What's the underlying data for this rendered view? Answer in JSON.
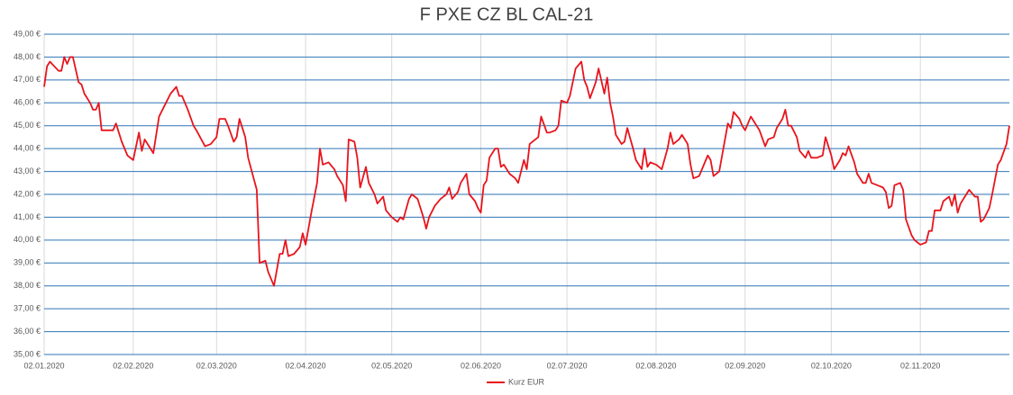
{
  "chart_data": {
    "type": "line",
    "title": "F PXE CZ BL CAL-21",
    "x": [
      "2020-01-02",
      "2020-01-03",
      "2020-01-04",
      "2020-01-07",
      "2020-01-08",
      "2020-01-09",
      "2020-01-10",
      "2020-01-11",
      "2020-01-12",
      "2020-01-14",
      "2020-01-15",
      "2020-01-16",
      "2020-01-18",
      "2020-01-19",
      "2020-01-20",
      "2020-01-21",
      "2020-01-22",
      "2020-01-26",
      "2020-01-27",
      "2020-01-29",
      "2020-01-31",
      "2020-02-02",
      "2020-02-04",
      "2020-02-05",
      "2020-02-06",
      "2020-02-08",
      "2020-02-09",
      "2020-02-11",
      "2020-02-13",
      "2020-02-15",
      "2020-02-17",
      "2020-02-18",
      "2020-02-19",
      "2020-02-21",
      "2020-02-23",
      "2020-02-24",
      "2020-02-27",
      "2020-02-29",
      "2020-03-02",
      "2020-03-03",
      "2020-03-05",
      "2020-03-06",
      "2020-03-08",
      "2020-03-09",
      "2020-03-10",
      "2020-03-12",
      "2020-03-13",
      "2020-03-16",
      "2020-03-17",
      "2020-03-19",
      "2020-03-20",
      "2020-03-22",
      "2020-03-24",
      "2020-03-25",
      "2020-03-26",
      "2020-03-27",
      "2020-03-29",
      "2020-03-31",
      "2020-04-01",
      "2020-04-02",
      "2020-04-04",
      "2020-04-06",
      "2020-04-07",
      "2020-04-08",
      "2020-04-10",
      "2020-04-12",
      "2020-04-13",
      "2020-04-15",
      "2020-04-16",
      "2020-04-17",
      "2020-04-19",
      "2020-04-20",
      "2020-04-21",
      "2020-04-23",
      "2020-04-24",
      "2020-04-26",
      "2020-04-27",
      "2020-04-29",
      "2020-04-30",
      "2020-05-02",
      "2020-05-04",
      "2020-05-05",
      "2020-05-06",
      "2020-05-08",
      "2020-05-09",
      "2020-05-11",
      "2020-05-13",
      "2020-05-14",
      "2020-05-15",
      "2020-05-17",
      "2020-05-19",
      "2020-05-21",
      "2020-05-22",
      "2020-05-23",
      "2020-05-25",
      "2020-05-26",
      "2020-05-28",
      "2020-05-29",
      "2020-05-31",
      "2020-06-01",
      "2020-06-02",
      "2020-06-03",
      "2020-06-04",
      "2020-06-05",
      "2020-06-07",
      "2020-06-08",
      "2020-06-09",
      "2020-06-10",
      "2020-06-12",
      "2020-06-14",
      "2020-06-15",
      "2020-06-17",
      "2020-06-18",
      "2020-06-19",
      "2020-06-21",
      "2020-06-22",
      "2020-06-23",
      "2020-06-25",
      "2020-06-26",
      "2020-06-28",
      "2020-06-29",
      "2020-06-30",
      "2020-07-02",
      "2020-07-03",
      "2020-07-05",
      "2020-07-07",
      "2020-07-08",
      "2020-07-09",
      "2020-07-10",
      "2020-07-12",
      "2020-07-13",
      "2020-07-15",
      "2020-07-16",
      "2020-07-17",
      "2020-07-18",
      "2020-07-19",
      "2020-07-21",
      "2020-07-22",
      "2020-07-23",
      "2020-07-25",
      "2020-07-26",
      "2020-07-28",
      "2020-07-29",
      "2020-07-30",
      "2020-07-31",
      "2020-08-02",
      "2020-08-04",
      "2020-08-06",
      "2020-08-07",
      "2020-08-08",
      "2020-08-10",
      "2020-08-11",
      "2020-08-13",
      "2020-08-14",
      "2020-08-15",
      "2020-08-17",
      "2020-08-18",
      "2020-08-20",
      "2020-08-21",
      "2020-08-22",
      "2020-08-24",
      "2020-08-25",
      "2020-08-27",
      "2020-08-28",
      "2020-08-29",
      "2020-08-31",
      "2020-09-01",
      "2020-09-02",
      "2020-09-03",
      "2020-09-04",
      "2020-09-05",
      "2020-09-07",
      "2020-09-09",
      "2020-09-10",
      "2020-09-12",
      "2020-09-13",
      "2020-09-15",
      "2020-09-16",
      "2020-09-17",
      "2020-09-18",
      "2020-09-20",
      "2020-09-21",
      "2020-09-23",
      "2020-09-24",
      "2020-09-25",
      "2020-09-27",
      "2020-09-29",
      "2020-09-30",
      "2020-10-02",
      "2020-10-03",
      "2020-10-05",
      "2020-10-06",
      "2020-10-07",
      "2020-10-08",
      "2020-10-10",
      "2020-10-11",
      "2020-10-13",
      "2020-10-14",
      "2020-10-15",
      "2020-10-16",
      "2020-10-18",
      "2020-10-20",
      "2020-10-21",
      "2020-10-22",
      "2020-10-23",
      "2020-10-24",
      "2020-10-26",
      "2020-10-27",
      "2020-10-28",
      "2020-10-30",
      "2020-10-31",
      "2020-11-02",
      "2020-11-04",
      "2020-11-05",
      "2020-11-06",
      "2020-11-07",
      "2020-11-09",
      "2020-11-10",
      "2020-11-12",
      "2020-11-13",
      "2020-11-14",
      "2020-11-15",
      "2020-11-16",
      "2020-11-18",
      "2020-11-19",
      "2020-11-21",
      "2020-11-22",
      "2020-11-23",
      "2020-11-24",
      "2020-11-26",
      "2020-11-27",
      "2020-11-29",
      "2020-11-30",
      "2020-12-02",
      "2020-12-03"
    ],
    "series": [
      {
        "name": "Kurz EUR",
        "color": "#e8141c",
        "values": [
          46.7,
          47.6,
          47.8,
          47.4,
          47.4,
          48.0,
          47.7,
          48.0,
          48.0,
          46.9,
          46.8,
          46.4,
          46.0,
          45.7,
          45.7,
          46.0,
          44.8,
          44.8,
          45.1,
          44.3,
          43.7,
          43.5,
          44.7,
          43.9,
          44.4,
          44.0,
          43.8,
          45.4,
          45.9,
          46.4,
          46.7,
          46.3,
          46.3,
          45.7,
          45.0,
          44.8,
          44.1,
          44.2,
          44.5,
          45.3,
          45.3,
          45.0,
          44.3,
          44.5,
          45.3,
          44.5,
          43.6,
          42.2,
          39.0,
          39.1,
          38.6,
          38.0,
          39.4,
          39.4,
          40.0,
          39.3,
          39.4,
          39.7,
          40.3,
          39.8,
          41.2,
          42.5,
          44.0,
          43.3,
          43.4,
          43.1,
          42.8,
          42.4,
          41.7,
          44.4,
          44.3,
          43.6,
          42.3,
          43.2,
          42.5,
          42.0,
          41.6,
          41.9,
          41.3,
          41.0,
          40.8,
          41.0,
          40.9,
          41.8,
          42.0,
          41.8,
          41.0,
          40.5,
          41.0,
          41.5,
          41.8,
          42.0,
          42.3,
          41.8,
          42.1,
          42.5,
          42.9,
          42.0,
          41.7,
          41.4,
          41.2,
          42.4,
          42.6,
          43.6,
          44.0,
          44.0,
          43.2,
          43.3,
          42.9,
          42.7,
          42.5,
          43.5,
          43.1,
          44.2,
          44.4,
          44.5,
          45.4,
          44.7,
          44.7,
          44.8,
          45.0,
          46.1,
          46.0,
          46.3,
          47.5,
          47.8,
          47.0,
          46.7,
          46.2,
          46.9,
          47.5,
          46.4,
          47.1,
          46.0,
          45.4,
          44.6,
          44.2,
          44.3,
          44.9,
          44.0,
          43.5,
          43.1,
          44.0,
          43.2,
          43.4,
          43.3,
          43.1,
          44.0,
          44.7,
          44.2,
          44.4,
          44.6,
          44.2,
          43.3,
          42.7,
          42.8,
          43.1,
          43.7,
          43.5,
          42.8,
          43.0,
          43.7,
          45.1,
          44.9,
          45.6,
          45.3,
          45.0,
          44.8,
          45.1,
          45.4,
          45.2,
          44.8,
          44.1,
          44.4,
          44.5,
          44.9,
          45.3,
          45.7,
          45.0,
          45.0,
          44.5,
          43.9,
          43.6,
          43.9,
          43.6,
          43.6,
          43.7,
          44.5,
          43.7,
          43.1,
          43.5,
          43.8,
          43.7,
          44.1,
          43.4,
          42.9,
          42.5,
          42.5,
          42.9,
          42.5,
          42.4,
          42.3,
          42.1,
          41.4,
          41.5,
          42.4,
          42.5,
          42.2,
          40.9,
          40.2,
          40.0,
          39.8,
          39.9,
          40.4,
          40.4,
          41.3,
          41.3,
          41.7,
          41.9,
          41.5,
          42.0,
          41.2,
          41.6,
          42.0,
          42.2,
          41.9,
          41.9,
          40.8,
          40.9,
          41.4,
          42.0,
          43.3,
          43.5,
          44.2,
          45.0
        ]
      }
    ],
    "xlim": [
      "2020-01-02",
      "2020-12-03"
    ],
    "xticks": [
      {
        "value": "2020-01-02",
        "label": "02.01.2020"
      },
      {
        "value": "2020-02-02",
        "label": "02.02.2020"
      },
      {
        "value": "2020-03-02",
        "label": "02.03.2020"
      },
      {
        "value": "2020-04-02",
        "label": "02.04.2020"
      },
      {
        "value": "2020-05-02",
        "label": "02.05.2020"
      },
      {
        "value": "2020-06-02",
        "label": "02.06.2020"
      },
      {
        "value": "2020-07-02",
        "label": "02.07.2020"
      },
      {
        "value": "2020-08-02",
        "label": "02.08.2020"
      },
      {
        "value": "2020-09-02",
        "label": "02.09.2020"
      },
      {
        "value": "2020-10-02",
        "label": "02.10.2020"
      },
      {
        "value": "2020-11-02",
        "label": "02.11.2020"
      }
    ],
    "ylim": [
      35,
      49
    ],
    "yticks": [
      {
        "value": 35,
        "label": "35,00 €"
      },
      {
        "value": 36,
        "label": "36,00 €"
      },
      {
        "value": 37,
        "label": "37,00 €"
      },
      {
        "value": 38,
        "label": "38,00 €"
      },
      {
        "value": 39,
        "label": "39,00 €"
      },
      {
        "value": 40,
        "label": "40,00 €"
      },
      {
        "value": 41,
        "label": "41,00 €"
      },
      {
        "value": 42,
        "label": "42,00 €"
      },
      {
        "value": 43,
        "label": "43,00 €"
      },
      {
        "value": 44,
        "label": "44,00 €"
      },
      {
        "value": 45,
        "label": "45,00 €"
      },
      {
        "value": 46,
        "label": "46,00 €"
      },
      {
        "value": 47,
        "label": "47,00 €"
      },
      {
        "value": 48,
        "label": "48,00 €"
      },
      {
        "value": 49,
        "label": "49,00 €"
      }
    ],
    "grid": true,
    "legend": "bottom"
  }
}
